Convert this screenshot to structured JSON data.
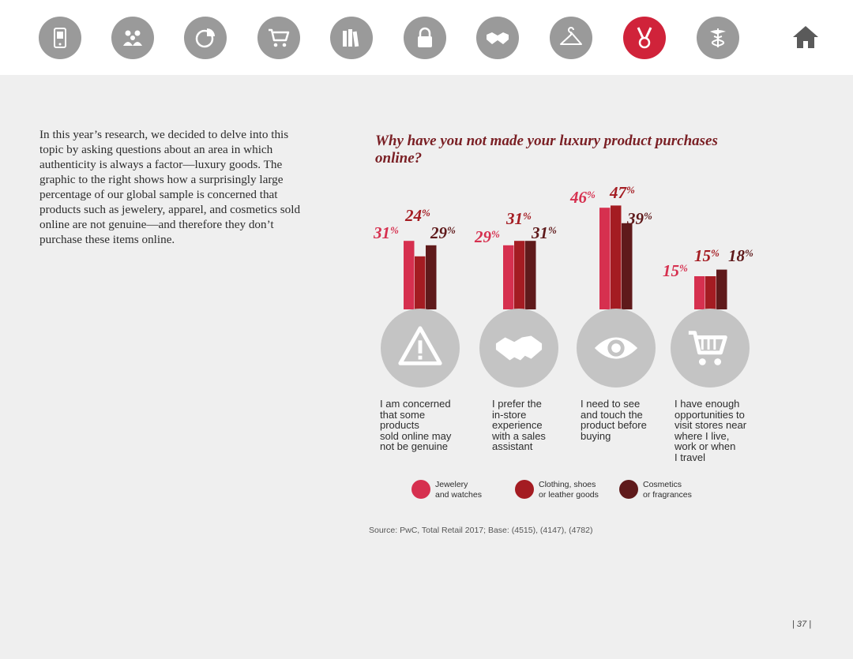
{
  "nav": {
    "items": [
      {
        "name": "tablet-icon",
        "active": false
      },
      {
        "name": "people-icon",
        "active": false
      },
      {
        "name": "pie-chart-icon",
        "active": false
      },
      {
        "name": "shopping-cart-icon",
        "active": false
      },
      {
        "name": "books-icon",
        "active": false
      },
      {
        "name": "padlock-icon",
        "active": false
      },
      {
        "name": "handshake-icon",
        "active": false
      },
      {
        "name": "hanger-icon",
        "active": false
      },
      {
        "name": "medal-icon",
        "active": true
      },
      {
        "name": "caduceus-icon",
        "active": false
      }
    ],
    "home": "home-icon"
  },
  "intro": "In this year’s research, we decided to delve into this topic by asking questions about an area in which authenticity is always a factor—luxury goods. The graphic to the right shows how a surprisingly large percentage of our global sample is concerned that products such as jewelery, apparel, and cosmetics sold online are not genuine—and therefore they don’t purchase these items online.",
  "chart_data": {
    "type": "bar",
    "title": "Why have you not made your luxury product purchases online?",
    "categories": [
      "I am concerned\nthat some\nproducts\nsold online may\nnot be genuine",
      "I prefer the\nin-store\nexperience\nwith a sales\nassistant",
      "I need to see\nand touch the\nproduct before\nbuying",
      "I have enough\nopportunities to\nvisit stores near\nwhere I live,\nwork or when\nI travel"
    ],
    "category_icons": [
      "warning-icon",
      "handshake-icon",
      "eye-icon",
      "shopping-cart-icon"
    ],
    "series": [
      {
        "name": "Jewelery\nand watches",
        "color": "#d6304f",
        "values": [
          31,
          29,
          46,
          15
        ]
      },
      {
        "name": "Clothing, shoes\nor leather goods",
        "color": "#a41c22",
        "values": [
          24,
          31,
          47,
          15
        ]
      },
      {
        "name": "Cosmetics\nor fragrances",
        "color": "#5f1a1b",
        "values": [
          29,
          31,
          39,
          18
        ]
      }
    ],
    "unit": "%",
    "ylim": [
      0,
      50
    ],
    "grid": false,
    "legend": "bottom"
  },
  "source": "Source: PwC, Total Retail 2017; Base: (4515), (4147), (4782)",
  "page_number": "| 37 |"
}
